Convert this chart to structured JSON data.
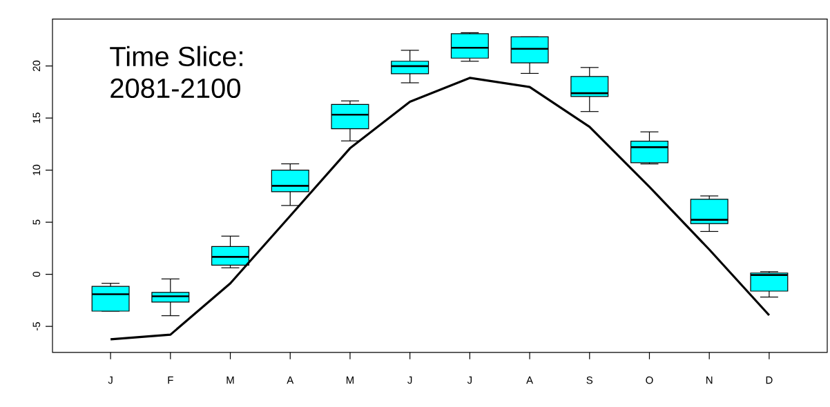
{
  "chart_data": {
    "type": "box",
    "categories": [
      "J",
      "F",
      "M",
      "A",
      "M",
      "J",
      "J",
      "A",
      "S",
      "O",
      "N",
      "D"
    ],
    "ylim": [
      -7.5,
      24.5
    ],
    "yticks": [
      -5,
      0,
      5,
      10,
      15,
      20
    ],
    "grid": false,
    "annotations": [
      "Time Slice:",
      "2081-2100"
    ],
    "series": [
      {
        "color": "#00ffff",
        "boxes": [
          {
            "low": -3.54,
            "q1": -3.54,
            "median": -1.92,
            "q3": -1.17,
            "high": -0.87
          },
          {
            "low": -3.98,
            "q1": -2.67,
            "median": -2.12,
            "q3": -1.74,
            "high": -0.45
          },
          {
            "low": 0.62,
            "q1": 0.87,
            "median": 1.67,
            "q3": 2.66,
            "high": 3.66
          },
          {
            "low": 6.6,
            "q1": 7.92,
            "median": 8.49,
            "q3": 9.99,
            "high": 10.6
          },
          {
            "low": 12.8,
            "q1": 13.97,
            "median": 15.32,
            "q3": 16.31,
            "high": 16.64
          },
          {
            "low": 18.38,
            "q1": 19.25,
            "median": 19.98,
            "q3": 20.45,
            "high": 21.5
          },
          {
            "low": 20.45,
            "q1": 20.75,
            "median": 21.74,
            "q3": 23.09,
            "high": 23.19
          },
          {
            "low": 19.28,
            "q1": 20.3,
            "median": 21.64,
            "q3": 22.79,
            "high": 22.79
          },
          {
            "low": 15.62,
            "q1": 17.06,
            "median": 17.38,
            "q3": 18.98,
            "high": 19.85
          },
          {
            "low": 10.59,
            "q1": 10.71,
            "median": 12.2,
            "q3": 12.78,
            "high": 13.67
          },
          {
            "low": 4.11,
            "q1": 4.86,
            "median": 5.23,
            "q3": 7.2,
            "high": 7.52
          },
          {
            "low": -2.19,
            "q1": -1.62,
            "median": -0.07,
            "q3": 0.12,
            "high": 0.25
          }
        ]
      },
      {
        "type": "line",
        "color": "#000000",
        "marker": "none",
        "values": [
          -6.25,
          -5.8,
          -0.87,
          5.6,
          12.1,
          16.56,
          18.85,
          17.98,
          14.15,
          8.39,
          2.37,
          -3.94
        ]
      }
    ]
  }
}
